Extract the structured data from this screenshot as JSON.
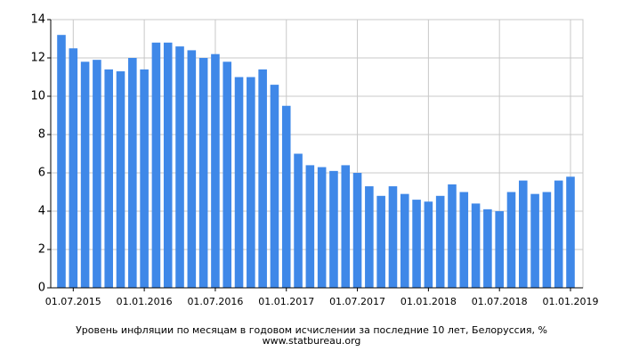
{
  "chart_data": {
    "type": "bar",
    "title": "Уровень инфляции по месяцам в годовом исчислении за последние 10 лет, Белоруссия, %",
    "source": "www.statbureau.org",
    "categories": [
      null,
      "01.07.2015",
      null,
      null,
      null,
      null,
      null,
      "01.01.2016",
      null,
      null,
      null,
      null,
      null,
      "01.07.2016",
      null,
      null,
      null,
      null,
      null,
      "01.01.2017",
      null,
      null,
      null,
      null,
      null,
      "01.07.2017",
      null,
      null,
      null,
      null,
      null,
      "01.01.2018",
      null,
      null,
      null,
      null,
      null,
      "01.07.2018",
      null,
      null,
      null,
      null,
      null,
      "01.01.2019"
    ],
    "values": [
      13.2,
      12.5,
      11.8,
      11.9,
      11.4,
      11.3,
      12.0,
      11.4,
      12.8,
      12.8,
      12.6,
      12.4,
      12.0,
      12.2,
      11.8,
      11.0,
      11.0,
      11.4,
      10.6,
      9.5,
      7.0,
      6.4,
      6.3,
      6.1,
      6.4,
      6.0,
      5.3,
      4.8,
      5.3,
      4.9,
      4.6,
      4.5,
      4.8,
      5.4,
      5.0,
      4.4,
      4.1,
      4.0,
      5.0,
      5.6,
      4.9,
      5.0,
      5.6,
      5.8
    ],
    "color": "#3f88e8",
    "ylim": [
      0,
      14
    ],
    "yticks": [
      0,
      2,
      4,
      6,
      8,
      10,
      12,
      14
    ],
    "grid": true
  }
}
